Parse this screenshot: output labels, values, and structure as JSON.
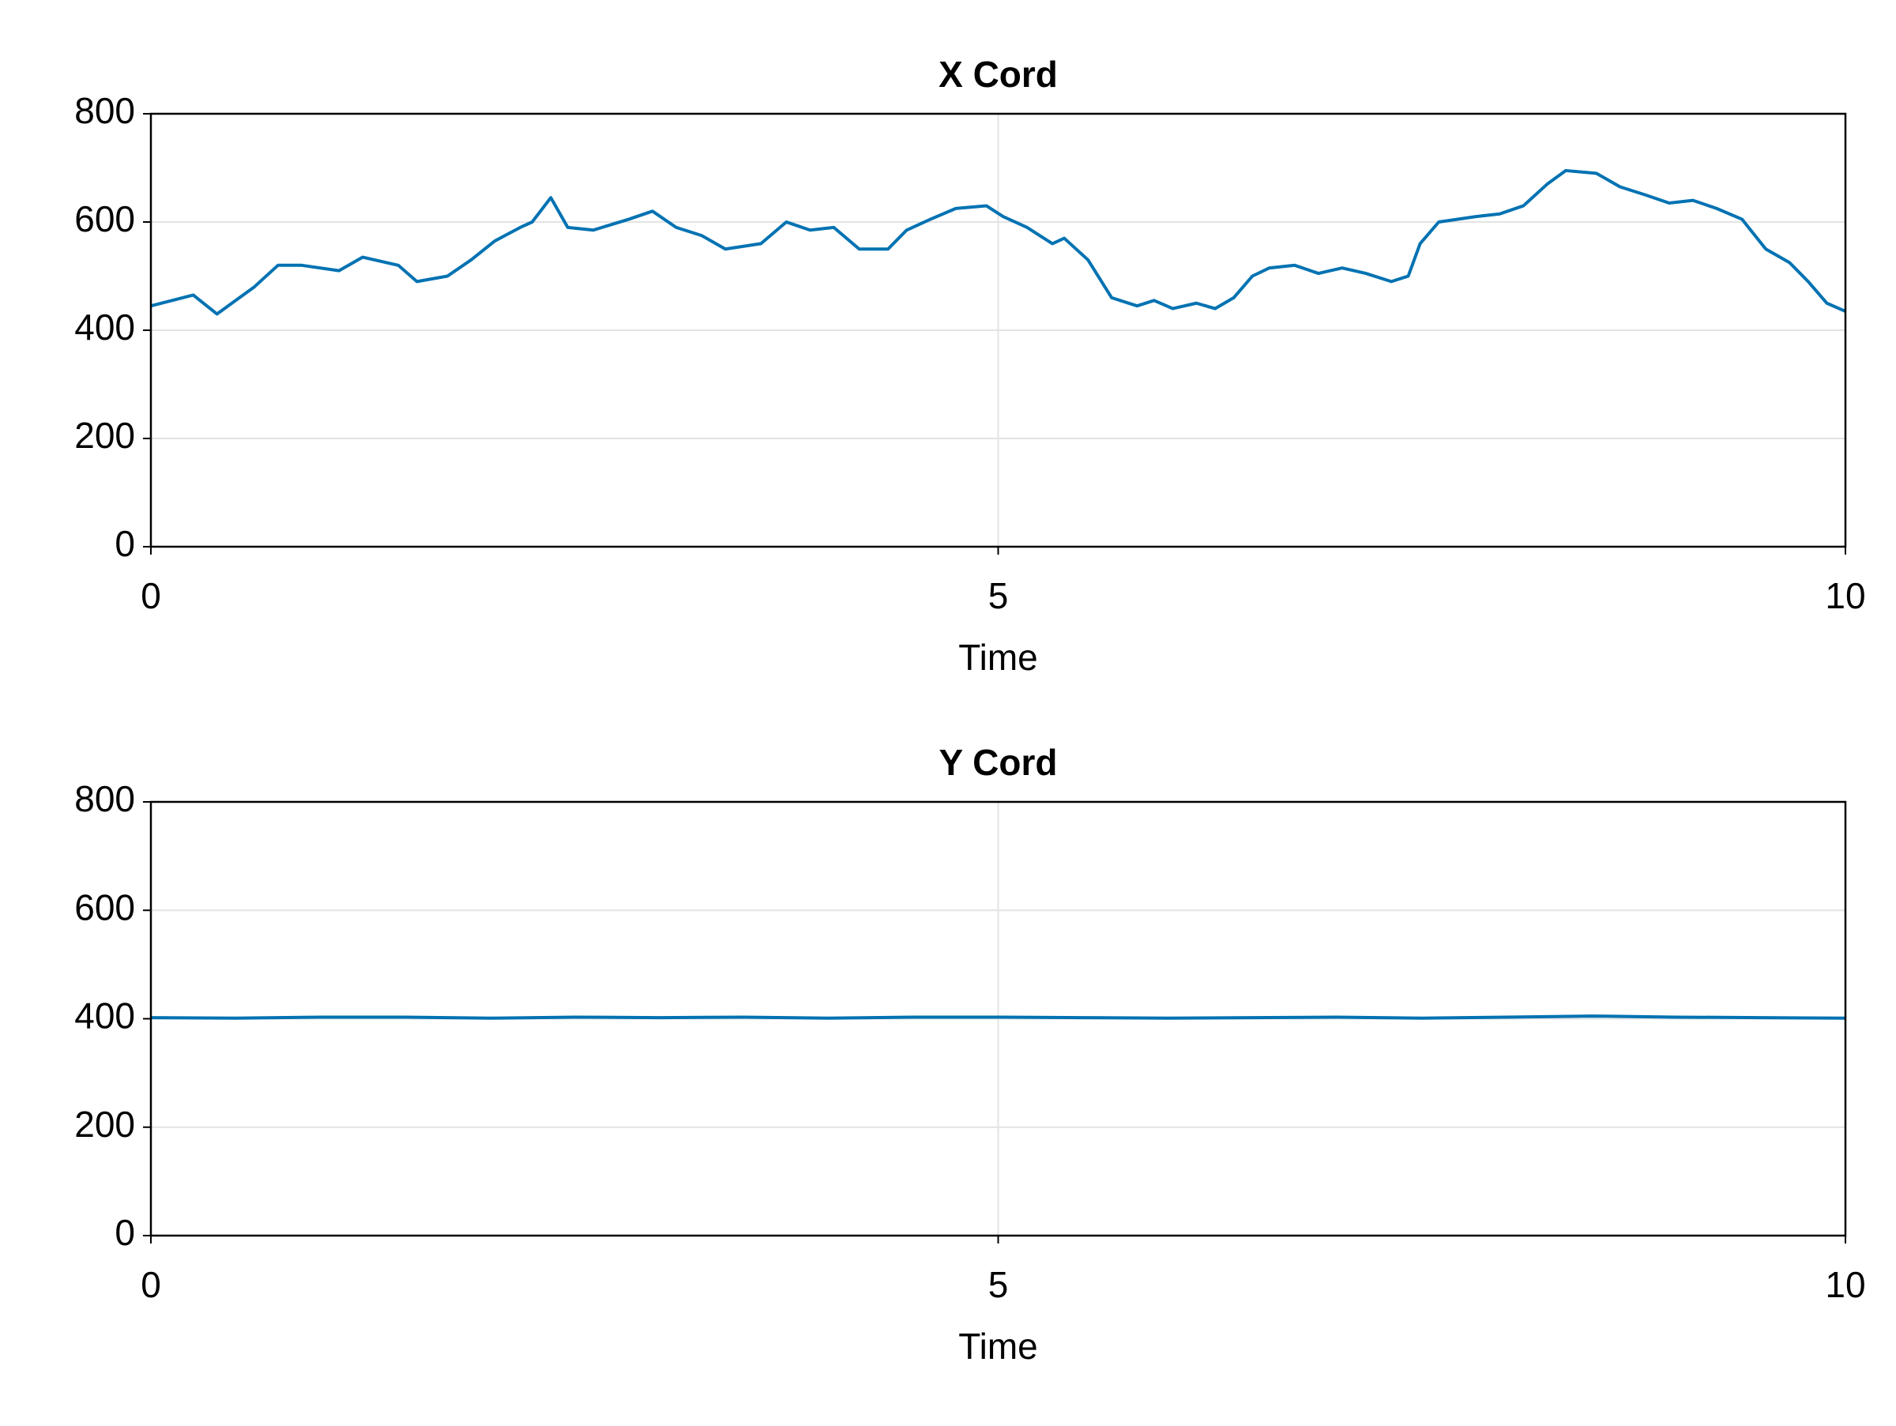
{
  "chart_data": [
    {
      "type": "line",
      "title": "X Cord",
      "x_label": "Time",
      "xlim": [
        0,
        10
      ],
      "xticks": [
        0,
        5,
        10
      ],
      "ylim": [
        0,
        800
      ],
      "yticks": [
        0,
        200,
        400,
        600,
        800
      ],
      "grid": true,
      "series": [
        {
          "name": "X Cord",
          "color": "#0072b2",
          "x": [
            0,
            0.25,
            0.39,
            0.61,
            0.75,
            0.89,
            1.11,
            1.25,
            1.46,
            1.57,
            1.75,
            1.89,
            2.03,
            2.18,
            2.25,
            2.36,
            2.46,
            2.61,
            2.82,
            2.96,
            3.1,
            3.25,
            3.39,
            3.6,
            3.75,
            3.89,
            4.03,
            4.18,
            4.35,
            4.46,
            4.6,
            4.75,
            4.93,
            5.03,
            5.17,
            5.32,
            5.39,
            5.53,
            5.67,
            5.82,
            5.92,
            6.03,
            6.17,
            6.28,
            6.39,
            6.5,
            6.6,
            6.75,
            6.89,
            7.03,
            7.17,
            7.32,
            7.42,
            7.49,
            7.6,
            7.82,
            7.96,
            8.1,
            8.24,
            8.35,
            8.53,
            8.67,
            8.82,
            8.96,
            9.1,
            9.24,
            9.39,
            9.53,
            9.67,
            9.78,
            9.89,
            10
          ],
          "values": [
            445,
            465,
            430,
            480,
            520,
            520,
            510,
            535,
            520,
            490,
            500,
            530,
            565,
            590,
            600,
            645,
            590,
            585,
            605,
            620,
            590,
            575,
            550,
            560,
            600,
            585,
            590,
            550,
            550,
            585,
            605,
            625,
            630,
            610,
            590,
            560,
            570,
            530,
            460,
            445,
            455,
            440,
            450,
            440,
            460,
            500,
            515,
            520,
            505,
            515,
            505,
            490,
            500,
            560,
            600,
            610,
            615,
            630,
            670,
            695,
            690,
            665,
            650,
            635,
            640,
            625,
            605,
            550,
            525,
            490,
            450,
            435
          ]
        }
      ]
    },
    {
      "type": "line",
      "title": "Y Cord",
      "x_label": "Time",
      "xlim": [
        0,
        10
      ],
      "xticks": [
        0,
        5,
        10
      ],
      "ylim": [
        0,
        800
      ],
      "yticks": [
        0,
        200,
        400,
        600,
        800
      ],
      "grid": true,
      "series": [
        {
          "name": "Y Cord",
          "color": "#0072b2",
          "x": [
            0,
            0.5,
            1,
            1.5,
            2,
            2.5,
            3,
            3.5,
            4,
            4.5,
            5,
            5.5,
            6,
            6.5,
            7,
            7.5,
            8,
            8.5,
            9,
            9.5,
            10
          ],
          "values": [
            402,
            401,
            403,
            403,
            401,
            403,
            402,
            403,
            401,
            403,
            403,
            402,
            401,
            402,
            403,
            401,
            403,
            405,
            403,
            402,
            401
          ]
        }
      ]
    }
  ]
}
